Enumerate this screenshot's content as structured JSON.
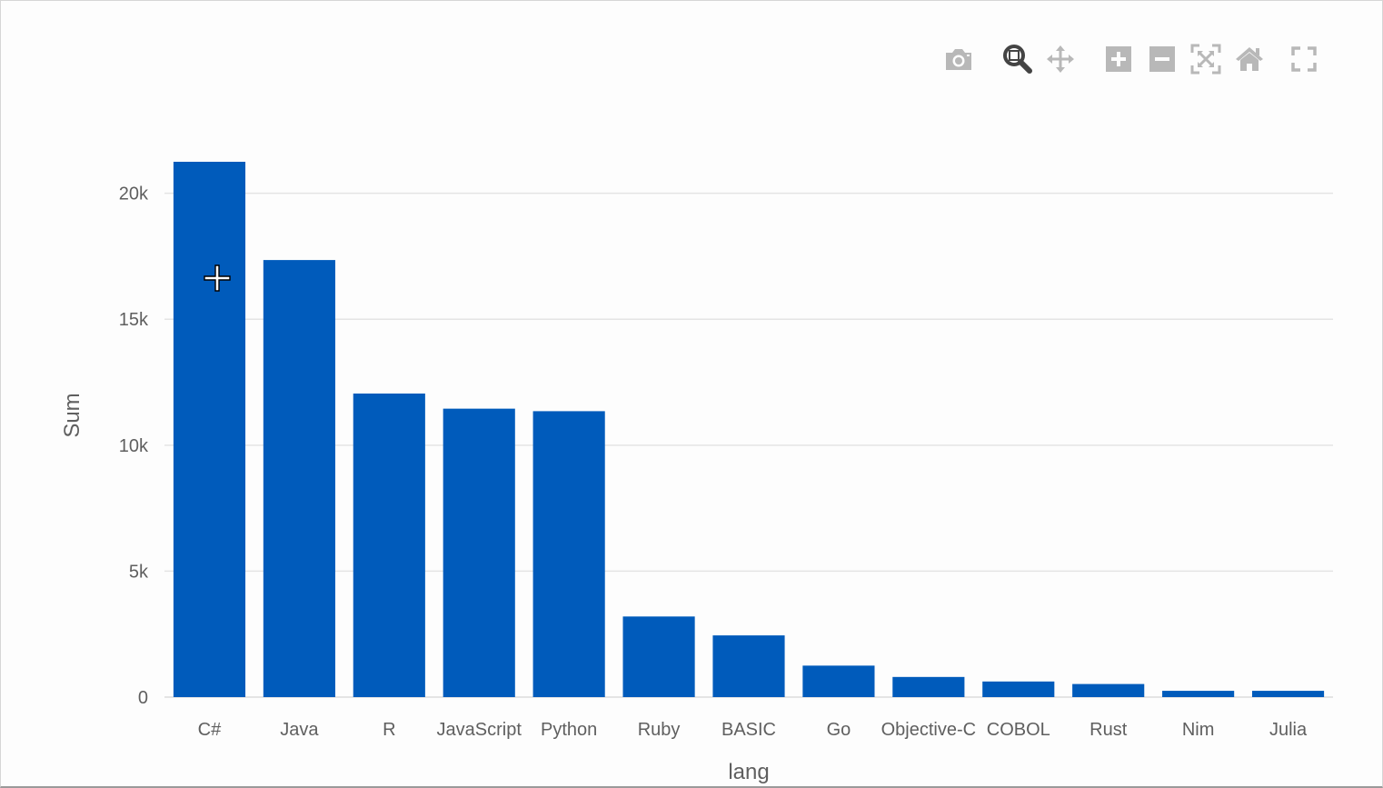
{
  "modebar": {
    "buttons": [
      {
        "name": "camera-icon",
        "label": "Download plot as a png"
      },
      {
        "name": "zoom-icon",
        "label": "Zoom"
      },
      {
        "name": "pan-icon",
        "label": "Pan"
      },
      {
        "name": "zoom-in-icon",
        "label": "Zoom in"
      },
      {
        "name": "zoom-out-icon",
        "label": "Zoom out"
      },
      {
        "name": "autoscale-icon",
        "label": "Autoscale"
      },
      {
        "name": "home-icon",
        "label": "Reset axes"
      },
      {
        "name": "fullscreen-icon",
        "label": "Toggle fullscreen"
      }
    ]
  },
  "chart_data": {
    "type": "bar",
    "xlabel": "lang",
    "ylabel": "Sum",
    "categories": [
      "C#",
      "Java",
      "R",
      "JavaScript",
      "Python",
      "Ruby",
      "BASIC",
      "Go",
      "Objective-C",
      "COBOL",
      "Rust",
      "Nim",
      "Julia"
    ],
    "values": [
      21250,
      17350,
      12050,
      11450,
      11350,
      3200,
      2450,
      1250,
      800,
      620,
      520,
      250,
      250
    ],
    "ylim": [
      0,
      21250
    ],
    "yticks": [
      0,
      5000,
      10000,
      15000,
      20000
    ],
    "ytick_labels": [
      "0",
      "5k",
      "10k",
      "15k",
      "20k"
    ],
    "grid": true,
    "bar_color": "#005bbb",
    "grid_color": "#e4e4e4",
    "text_color": "#5f5f5f",
    "icon_color": "#b8b8b8",
    "active_icon_color": "#444444"
  }
}
